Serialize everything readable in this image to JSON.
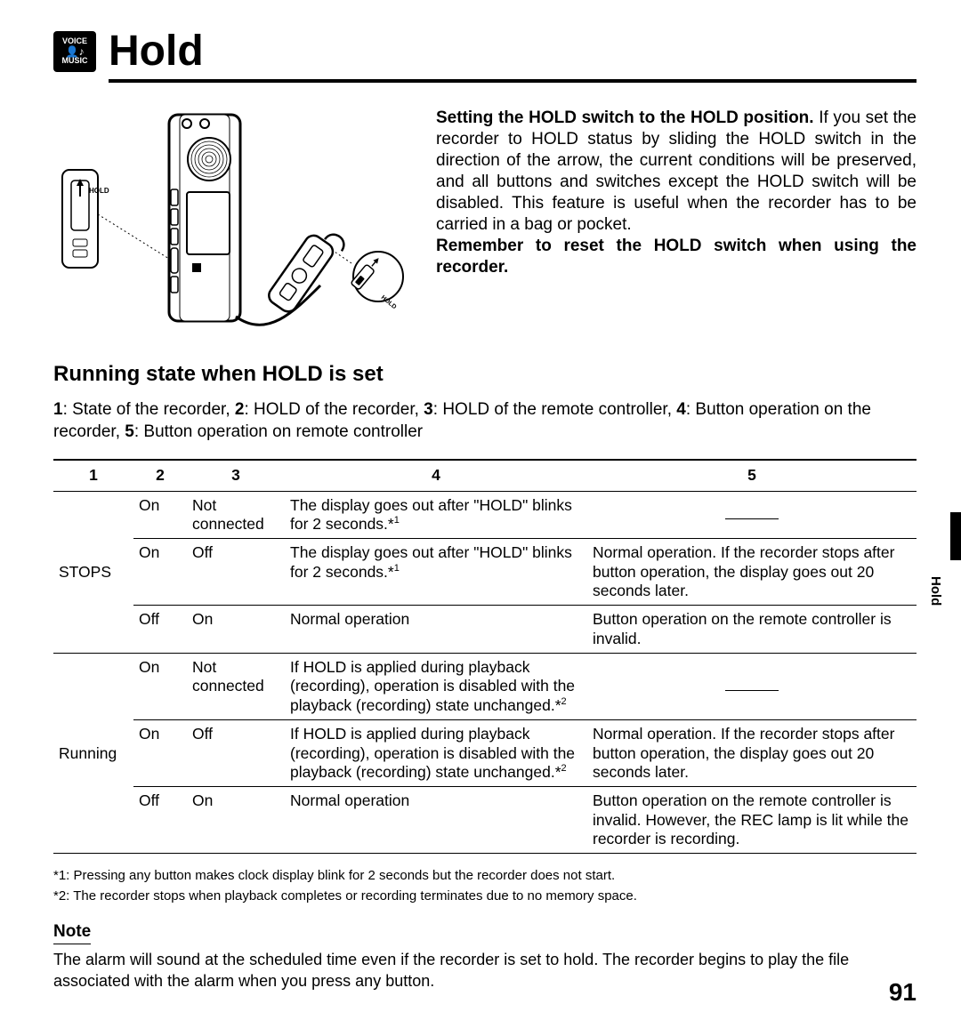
{
  "logo": {
    "top": "VOICE",
    "bottom": "MUSIC"
  },
  "title": "Hold",
  "intro": {
    "heading_prefix": "Setting the ",
    "heading_strong": "HOLD",
    "heading_suffix": " switch to the HOLD position.",
    "body": "If you set the recorder to HOLD status by sliding the HOLD switch in the direction of the arrow, the current conditions will be preserved, and all buttons and switches except the HOLD switch will be disabled. This feature is useful when the recorder has to be carried in a bag or pocket.",
    "reminder": "Remember to reset the HOLD switch when using the recorder."
  },
  "illustration": {
    "hold_label": "HOLD"
  },
  "section_title": "Running state when HOLD is set",
  "legend": {
    "k1": "1",
    "v1": "State of the recorder",
    "k2": "2",
    "v2": "HOLD of the recorder",
    "k3": "3",
    "v3": "HOLD of the remote controller",
    "k4": "4",
    "v4": "Button operation on the recorder",
    "k5": "5",
    "v5": "Button operation on remote controller"
  },
  "table": {
    "headers": [
      "1",
      "2",
      "3",
      "4",
      "5"
    ],
    "groups": [
      {
        "state": "STOPS",
        "rows": [
          {
            "c2": "On",
            "c3": "Not connected",
            "c4": "The display goes out after \"HOLD\" blinks for 2 seconds.*1",
            "c5": "—"
          },
          {
            "c2": "On",
            "c3": "Off",
            "c4": "The display goes out after \"HOLD\" blinks for 2 seconds.*1",
            "c5": "Normal operation. If the recorder stops after button operation, the display goes out 20 seconds later."
          },
          {
            "c2": "Off",
            "c3": "On",
            "c4": "Normal operation",
            "c5": "Button operation on the remote controller is invalid."
          }
        ]
      },
      {
        "state": "Running",
        "rows": [
          {
            "c2": "On",
            "c3": "Not connected",
            "c4": "If HOLD is applied during playback (recording), operation is disabled with the playback (recording) state unchanged.*2",
            "c5": "—"
          },
          {
            "c2": "On",
            "c3": "Off",
            "c4": "If HOLD is applied during playback (recording), operation is disabled with the playback (recording) state unchanged.*2",
            "c5": "Normal operation. If the recorder stops after button operation, the display goes out 20 seconds later."
          },
          {
            "c2": "Off",
            "c3": "On",
            "c4": "Normal operation",
            "c5": "Button operation on the remote controller is invalid. However, the REC lamp is lit while the recorder is recording."
          }
        ]
      }
    ]
  },
  "footnotes": {
    "f1": "*1: Pressing any button makes clock display blink for 2 seconds but the recorder does not start.",
    "f2": "*2: The recorder stops when playback completes or recording terminates due to no memory space."
  },
  "note": {
    "heading": "Note",
    "body": "The alarm will sound at the scheduled time even if the recorder is set to hold. The recorder begins to play the file associated with the alarm when you press any button."
  },
  "side_tab": "Hold",
  "page_number": "91",
  "colors": {
    "text": "#000000",
    "background": "#ffffff",
    "rule": "#000000"
  }
}
